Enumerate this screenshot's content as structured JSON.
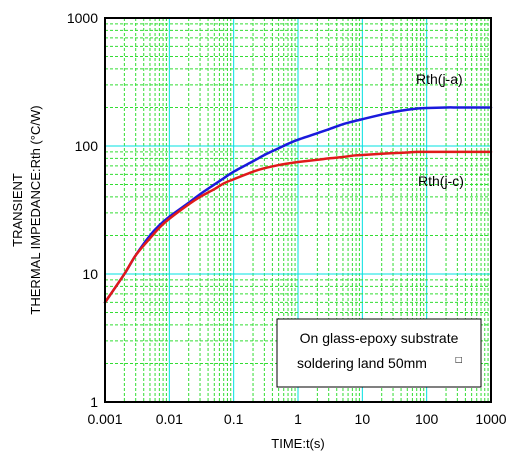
{
  "chart_data": {
    "type": "line",
    "xscale": "log",
    "yscale": "log",
    "xlim": [
      0.001,
      1000
    ],
    "ylim": [
      1,
      1000
    ],
    "xticks": [
      "0.001",
      "0.01",
      "0.1",
      "1",
      "10",
      "100",
      "1000"
    ],
    "yticks": [
      "1",
      "10",
      "100",
      "1000"
    ],
    "xlabel": "TIME:t(s)",
    "ylabel_lines": [
      "TRANSIENT",
      "THERMAL IMPEDANCE:Rth (°C/W)"
    ],
    "grid": true,
    "series": [
      {
        "name": "Rth(j-a)",
        "color": "#1a1adc",
        "x": [
          0.001,
          0.002,
          0.003,
          0.005,
          0.007,
          0.01,
          0.02,
          0.03,
          0.05,
          0.07,
          0.1,
          0.2,
          0.3,
          0.5,
          0.7,
          1,
          2,
          3,
          5,
          7,
          10,
          20,
          30,
          50,
          70,
          100,
          200,
          300,
          500,
          1000
        ],
        "y": [
          6,
          10,
          14,
          20,
          24,
          28,
          36,
          42,
          50,
          56,
          63,
          76,
          85,
          96,
          104,
          112,
          126,
          135,
          148,
          155,
          162,
          176,
          184,
          192,
          196,
          198,
          200,
          200,
          200,
          200
        ]
      },
      {
        "name": "Rth(j-c)",
        "color": "#e01a1a",
        "x": [
          0.001,
          0.002,
          0.003,
          0.005,
          0.007,
          0.01,
          0.02,
          0.03,
          0.05,
          0.07,
          0.1,
          0.2,
          0.3,
          0.5,
          0.7,
          1,
          2,
          3,
          5,
          7,
          10,
          20,
          30,
          50,
          70,
          100,
          200,
          300,
          500,
          1000
        ],
        "y": [
          6,
          10,
          14,
          19,
          23,
          27,
          35,
          40,
          46,
          51,
          55,
          63,
          67,
          71,
          73,
          75,
          78,
          80,
          82,
          84,
          85,
          87,
          88,
          89,
          90,
          90,
          90,
          90,
          90,
          90
        ]
      }
    ],
    "annotation": {
      "lines": [
        "On glass-epoxy substrate",
        "soldering land 50mm",
        "□"
      ]
    },
    "colors": {
      "axis": "#000000",
      "major_grid": "#00e0e0",
      "minor_grid": "#33dd33"
    }
  }
}
